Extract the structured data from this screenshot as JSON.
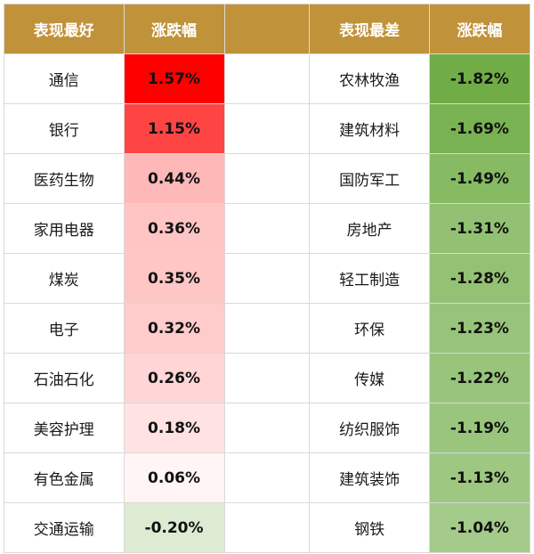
{
  "chart_data": {
    "type": "table",
    "columns": [
      "表现最好",
      "涨跌幅",
      "",
      "表现最差",
      "涨跌幅"
    ],
    "best": [
      {
        "name": "通信",
        "change": "1.57%",
        "value": 1.57
      },
      {
        "name": "银行",
        "change": "1.15%",
        "value": 1.15
      },
      {
        "name": "医药生物",
        "change": "0.44%",
        "value": 0.44
      },
      {
        "name": "家用电器",
        "change": "0.36%",
        "value": 0.36
      },
      {
        "name": "煤炭",
        "change": "0.35%",
        "value": 0.35
      },
      {
        "name": "电子",
        "change": "0.32%",
        "value": 0.32
      },
      {
        "name": "石油石化",
        "change": "0.26%",
        "value": 0.26
      },
      {
        "name": "美容护理",
        "change": "0.18%",
        "value": 0.18
      },
      {
        "name": "有色金属",
        "change": "0.06%",
        "value": 0.06
      },
      {
        "name": "交通运输",
        "change": "-0.20%",
        "value": -0.2
      }
    ],
    "worst": [
      {
        "name": "农林牧渔",
        "change": "-1.82%",
        "value": -1.82
      },
      {
        "name": "建筑材料",
        "change": "-1.69%",
        "value": -1.69
      },
      {
        "name": "国防军工",
        "change": "-1.49%",
        "value": -1.49
      },
      {
        "name": "房地产",
        "change": "-1.31%",
        "value": -1.31
      },
      {
        "name": "轻工制造",
        "change": "-1.28%",
        "value": -1.28
      },
      {
        "name": "环保",
        "change": "-1.23%",
        "value": -1.23
      },
      {
        "name": "传媒",
        "change": "-1.22%",
        "value": -1.22
      },
      {
        "name": "纺织服饰",
        "change": "-1.19%",
        "value": -1.19
      },
      {
        "name": "建筑装饰",
        "change": "-1.13%",
        "value": -1.13
      },
      {
        "name": "钢铁",
        "change": "-1.04%",
        "value": -1.04
      }
    ]
  },
  "colors": {
    "header_bg": "#c0923a",
    "header_text": "#ffffff",
    "positive_max": "#ff0000",
    "negative_max": "#70ad47",
    "neutral": "#ffffff"
  }
}
